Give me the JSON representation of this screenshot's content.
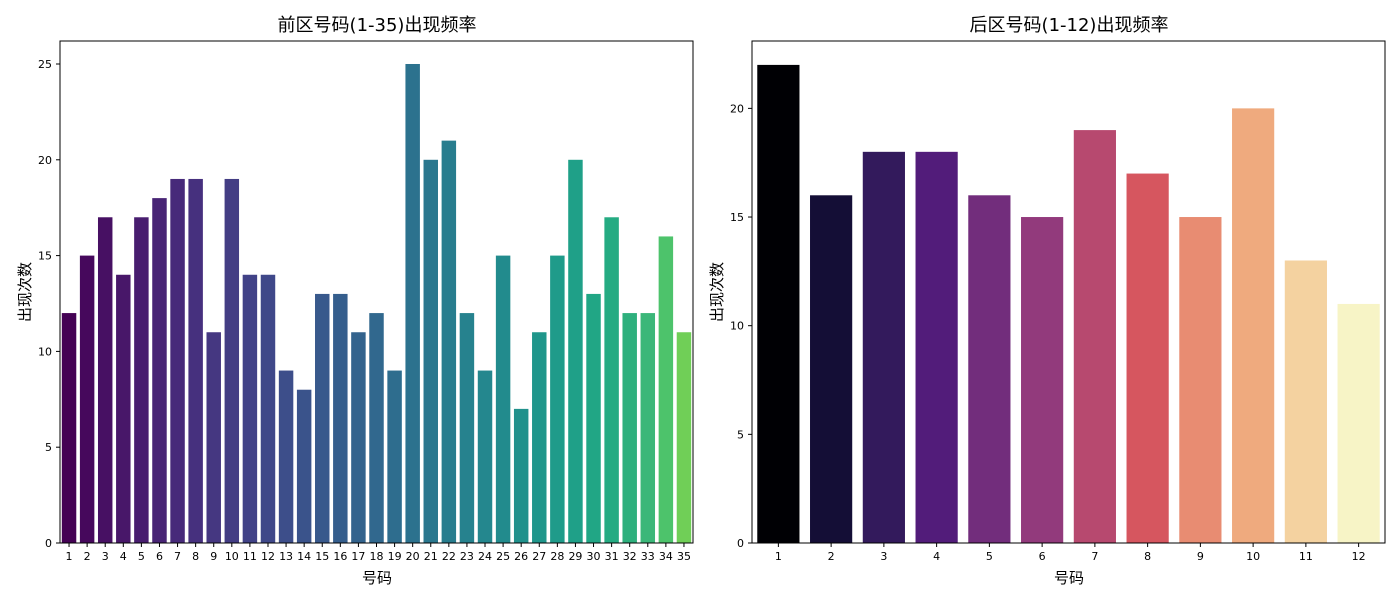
{
  "chart_data": [
    {
      "type": "bar",
      "title": "前区号码(1-35)出现频率",
      "xlabel": "号码",
      "ylabel": "出现次数",
      "categories": [
        "1",
        "2",
        "3",
        "4",
        "5",
        "6",
        "7",
        "8",
        "9",
        "10",
        "11",
        "12",
        "13",
        "14",
        "15",
        "16",
        "17",
        "18",
        "19",
        "20",
        "21",
        "22",
        "23",
        "24",
        "25",
        "26",
        "27",
        "28",
        "29",
        "30",
        "31",
        "32",
        "33",
        "34",
        "35"
      ],
      "values": [
        12,
        15,
        17,
        14,
        17,
        18,
        19,
        19,
        11,
        19,
        14,
        14,
        9,
        8,
        13,
        13,
        11,
        12,
        9,
        25,
        20,
        21,
        12,
        9,
        15,
        7,
        11,
        15,
        20,
        13,
        17,
        12,
        12,
        16,
        11
      ],
      "ylim": [
        0,
        26.2
      ],
      "yticks": [
        0,
        5,
        10,
        15,
        20,
        25
      ],
      "colormap": "viridis",
      "colors": [
        "#440154",
        "#46085c",
        "#471063",
        "#481769",
        "#481d6f",
        "#482475",
        "#472a7a",
        "#46307e",
        "#453781",
        "#433d84",
        "#414287",
        "#3f4889",
        "#3d4e8a",
        "#3a538b",
        "#38598c",
        "#355e8d",
        "#33638d",
        "#31688e",
        "#2e6d8e",
        "#2c728e",
        "#2a778e",
        "#287d8e",
        "#26828e",
        "#24878e",
        "#228b8d",
        "#21918c",
        "#1f968b",
        "#1f9b8a",
        "#1fa088",
        "#21a685",
        "#25ab82",
        "#2eb07d",
        "#3bb779",
        "#4dc36b",
        "#70cf57"
      ],
      "grid": false,
      "legend": "none"
    },
    {
      "type": "bar",
      "title": "后区号码(1-12)出现频率",
      "xlabel": "号码",
      "ylabel": "出现次数",
      "categories": [
        "1",
        "2",
        "3",
        "4",
        "5",
        "6",
        "7",
        "8",
        "9",
        "10",
        "11",
        "12"
      ],
      "values": [
        22,
        16,
        18,
        18,
        16,
        15,
        19,
        17,
        15,
        20,
        13,
        11
      ],
      "ylim": [
        0,
        23.1
      ],
      "yticks": [
        0,
        5,
        10,
        15,
        20
      ],
      "colormap": "magma",
      "colors": [
        "#000004",
        "#140e36",
        "#331a5c",
        "#521c7a",
        "#722d7c",
        "#923a7c",
        "#b7496f",
        "#d6565f",
        "#e88c72",
        "#efaa7e",
        "#f4d2a0",
        "#f7f4c6"
      ],
      "grid": false,
      "legend": "none"
    }
  ]
}
